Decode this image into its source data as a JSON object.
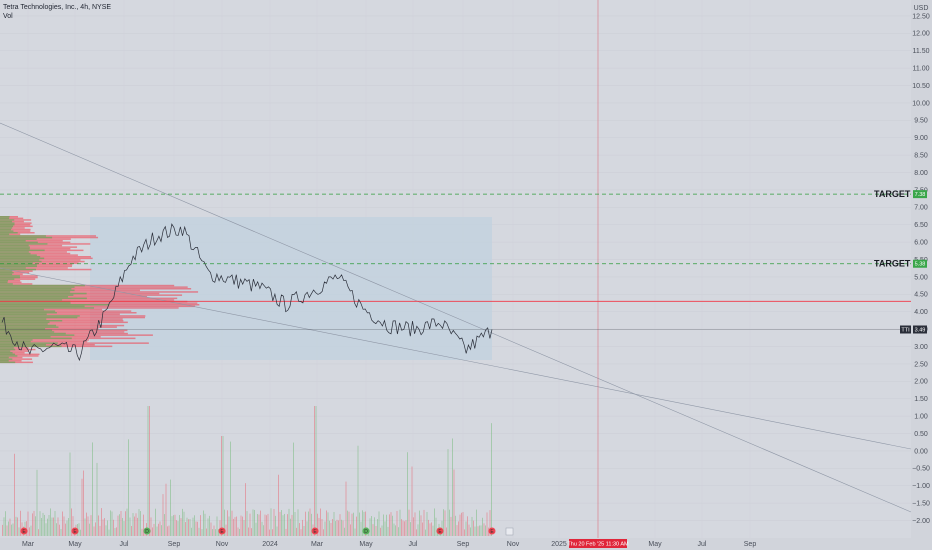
{
  "header": {
    "title": "Tetra Technologies, Inc., 4h, NYSE",
    "volume_label": "Vol"
  },
  "price_axis": {
    "currency": "USD",
    "ticks": [
      "12.50",
      "12.00",
      "11.50",
      "11.00",
      "10.50",
      "10.00",
      "9.50",
      "9.00",
      "8.50",
      "8.00",
      "7.50",
      "7.00",
      "6.50",
      "6.00",
      "5.50",
      "5.00",
      "4.50",
      "4.00",
      "3.50",
      "3.00",
      "2.50",
      "2.00",
      "1.50",
      "1.00",
      "0.50",
      "0.00",
      "−0.50",
      "−1.00",
      "−1.50",
      "−2.00"
    ]
  },
  "time_axis": {
    "labels": [
      "Mar",
      "May",
      "Jul",
      "Sep",
      "Nov",
      "2024",
      "Mar",
      "May",
      "Jul",
      "Sep",
      "Nov",
      "2025",
      "May",
      "Jul",
      "Sep"
    ],
    "crosshair_label": "Thu 20 Feb '25   11:30 AM"
  },
  "annotations": {
    "target1": {
      "label": "TARGET 1",
      "price": 5.38,
      "badge": "5.38"
    },
    "target2": {
      "label": "TARGET 2",
      "price": 7.38,
      "badge": "7.38"
    },
    "last_price": {
      "ticker": "TTI",
      "price": 3.49,
      "badge": "3.49"
    }
  },
  "event_markers": [
    "E",
    "E",
    "D",
    "E",
    "E",
    "D",
    "E",
    "E"
  ],
  "colors": {
    "background": "#d5d8df",
    "up": "#4caf50",
    "down": "#f23645",
    "target_line": "#2e9c3a",
    "resistance": "#f23645",
    "crosshair": "#e0596a",
    "price_line": "#2a2e39",
    "range_box": "#c2d2de"
  },
  "chart_data": {
    "type": "line",
    "title": "Tetra Technologies, Inc., 4h, NYSE",
    "ylabel": "USD",
    "ylim": [
      -2.2,
      12.9
    ],
    "x": [
      "2023-03",
      "2023-04",
      "2023-05",
      "2023-06",
      "2023-07",
      "2023-08",
      "2023-09",
      "2023-10",
      "2023-11",
      "2023-12",
      "2024-01",
      "2024-02",
      "2024-03",
      "2024-04",
      "2024-05",
      "2024-06",
      "2024-07",
      "2024-08",
      "2024-09",
      "2024-10"
    ],
    "series": [
      {
        "values": [
          3.7,
          2.8,
          3.0,
          2.8,
          3.9,
          5.5,
          6.2,
          6.4,
          5.1,
          4.9,
          4.7,
          4.2,
          4.6,
          5.0,
          4.1,
          3.6,
          3.5,
          3.7,
          2.9,
          3.49
        ]
      }
    ],
    "horizontal_levels": [
      7.38,
      5.38,
      4.3,
      3.49
    ]
  }
}
